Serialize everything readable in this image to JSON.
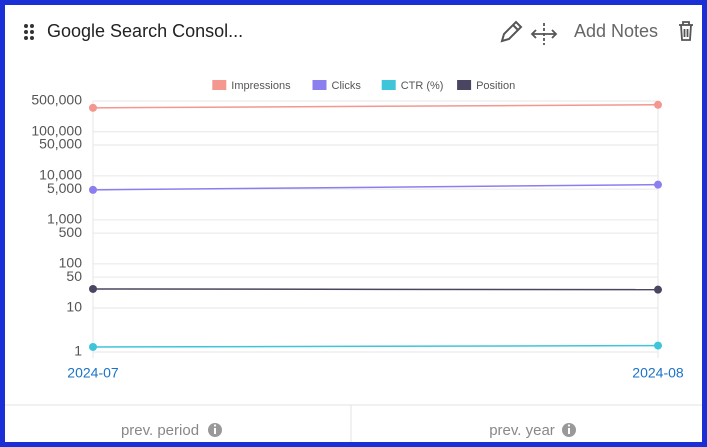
{
  "header": {
    "title": "Google Search Consol...",
    "add_notes": "Add Notes"
  },
  "chart_data": {
    "type": "line",
    "log_scale": true,
    "grid": true,
    "legend": "top",
    "categories": [
      "2024-07",
      "2024-08"
    ],
    "series": [
      {
        "name": "Impressions",
        "color": "#f4978e",
        "values": [
          350000,
          410000
        ]
      },
      {
        "name": "Clicks",
        "color": "#8b7ff0",
        "values": [
          4800,
          6300
        ]
      },
      {
        "name": "CTR (%)",
        "color": "#3fc5d9",
        "values": [
          1.3,
          1.4
        ]
      },
      {
        "name": "Position",
        "color": "#4a4560",
        "values": [
          27,
          26
        ]
      }
    ],
    "ylim": [
      1,
      500000
    ],
    "yticks": [
      1,
      10,
      50,
      100,
      500,
      {
        "value": 1000,
        "label": "1,000"
      },
      {
        "value": 5000,
        "label": "5,000"
      },
      {
        "value": 10000,
        "label": "10,000"
      },
      {
        "value": 50000,
        "label": "50,000"
      },
      {
        "value": 100000,
        "label": "100,000"
      },
      {
        "value": 500000,
        "label": "500,000"
      }
    ]
  },
  "footer": {
    "prev_period": "prev. period",
    "prev_year": "prev. year"
  }
}
